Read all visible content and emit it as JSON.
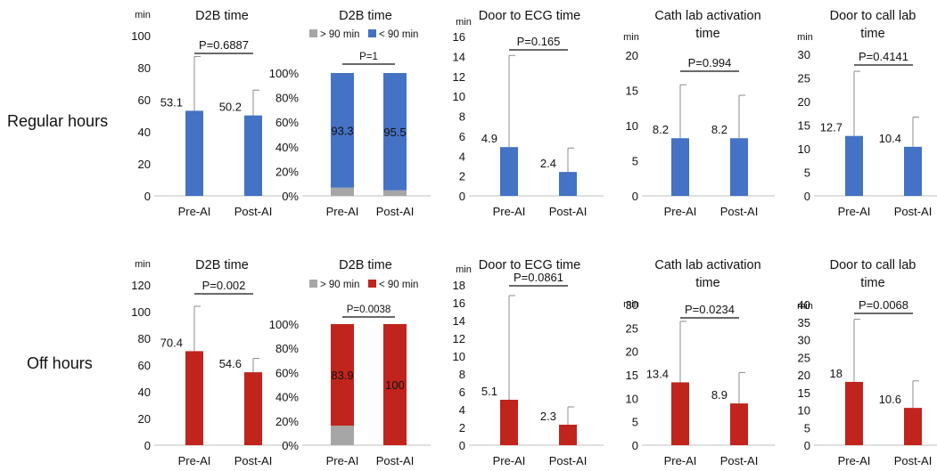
{
  "rows": [
    {
      "label": "Regular hours",
      "bar_color": "#4472C4"
    },
    {
      "label": "Off hours",
      "bar_color": "#C0241C"
    }
  ],
  "stack_low_color": "#A6A6A6",
  "chart_data": [
    {
      "row": 0,
      "type": "bar",
      "title": [
        "D2B time"
      ],
      "unit": "min",
      "categories": [
        "Pre-AI",
        "Post-AI"
      ],
      "values": [
        53.1,
        50.2
      ],
      "labels": [
        "53.1",
        "50.2"
      ],
      "error_top": [
        87,
        66
      ],
      "ylim": [
        0,
        100
      ],
      "yticks": [
        0,
        20,
        40,
        60,
        80,
        100
      ],
      "pvalue": "P=0.6887"
    },
    {
      "row": 0,
      "type": "bar",
      "stacked": true,
      "title": [
        "D2B time"
      ],
      "categories": [
        "Pre-AI",
        "Post-AI"
      ],
      "legend": [
        "> 90 min",
        "< 90 min"
      ],
      "series": [
        {
          "name": "> 90 min",
          "values": [
            6.7,
            4.5
          ]
        },
        {
          "name": "< 90 min",
          "values": [
            93.3,
            95.5
          ]
        }
      ],
      "labels": [
        "93.3",
        "95.5"
      ],
      "ylim": [
        0,
        100
      ],
      "yticks": [
        "0%",
        "20%",
        "40%",
        "60%",
        "80%",
        "100%"
      ],
      "pvalue": "P=1"
    },
    {
      "row": 0,
      "type": "bar",
      "title": [
        "Door to ECG time"
      ],
      "unit": "min",
      "categories": [
        "Pre-AI",
        "Post-AI"
      ],
      "values": [
        4.9,
        2.4
      ],
      "labels": [
        "4.9",
        "2.4"
      ],
      "error_top": [
        14.1,
        4.8
      ],
      "ylim": [
        0,
        16
      ],
      "yticks": [
        0,
        2,
        4,
        6,
        8,
        10,
        12,
        14,
        16
      ],
      "pvalue": "P=0.165"
    },
    {
      "row": 0,
      "type": "bar",
      "title": [
        "Cath lab activation",
        "time"
      ],
      "unit": "min",
      "categories": [
        "Pre-AI",
        "Post-AI"
      ],
      "values": [
        8.2,
        8.2
      ],
      "labels": [
        "8.2",
        "8.2"
      ],
      "error_top": [
        15.8,
        14.3
      ],
      "ylim": [
        0,
        20
      ],
      "yticks": [
        0,
        5,
        10,
        15,
        20
      ],
      "pvalue": "P=0.994"
    },
    {
      "row": 0,
      "type": "bar",
      "title": [
        "Door to call lab",
        "time"
      ],
      "unit": "min",
      "categories": [
        "Pre-AI",
        "Post-AI"
      ],
      "values": [
        12.7,
        10.4
      ],
      "labels": [
        "12.7",
        "10.4"
      ],
      "error_top": [
        26.4,
        16.7
      ],
      "ylim": [
        0,
        30
      ],
      "yticks": [
        0,
        5,
        10,
        15,
        20,
        25,
        30
      ],
      "pvalue": "P=0.4141"
    },
    {
      "row": 1,
      "type": "bar",
      "title": [
        "D2B time"
      ],
      "unit": "min",
      "categories": [
        "Pre-AI",
        "Post-AI"
      ],
      "values": [
        70.4,
        54.6
      ],
      "labels": [
        "70.4",
        "54.6"
      ],
      "error_top": [
        104,
        65
      ],
      "ylim": [
        0,
        120
      ],
      "yticks": [
        0,
        20,
        40,
        60,
        80,
        100,
        120
      ],
      "pvalue": "P=0.002"
    },
    {
      "row": 1,
      "type": "bar",
      "stacked": true,
      "title": [
        "D2B time"
      ],
      "categories": [
        "Pre-AI",
        "Post-AI"
      ],
      "legend": [
        "> 90 min",
        "< 90 min"
      ],
      "series": [
        {
          "name": "> 90 min",
          "values": [
            16.1,
            0
          ]
        },
        {
          "name": "< 90 min",
          "values": [
            83.9,
            100
          ]
        }
      ],
      "labels": [
        "83.9",
        "100"
      ],
      "ylim": [
        0,
        100
      ],
      "yticks": [
        "0%",
        "20%",
        "40%",
        "60%",
        "80%",
        "100%"
      ],
      "pvalue": "P=0.0038"
    },
    {
      "row": 1,
      "type": "bar",
      "title": [
        "Door to ECG time"
      ],
      "unit": "min",
      "categories": [
        "Pre-AI",
        "Post-AI"
      ],
      "values": [
        5.1,
        2.3
      ],
      "labels": [
        "5.1",
        "2.3"
      ],
      "error_top": [
        16.8,
        4.3
      ],
      "ylim": [
        0,
        18
      ],
      "yticks": [
        0,
        2,
        4,
        6,
        8,
        10,
        12,
        14,
        16,
        18
      ],
      "pvalue": "P=0.0861"
    },
    {
      "row": 1,
      "type": "bar",
      "title": [
        "Cath lab activation",
        "time"
      ],
      "unit": "min",
      "categories": [
        "Pre-AI",
        "Post-AI"
      ],
      "values": [
        13.4,
        8.9
      ],
      "labels": [
        "13.4",
        "8.9"
      ],
      "error_top": [
        26.4,
        15.5
      ],
      "ylim": [
        0,
        30
      ],
      "yticks": [
        0,
        5,
        10,
        15,
        20,
        25,
        30
      ],
      "pvalue": "P=0.0234"
    },
    {
      "row": 1,
      "type": "bar",
      "title": [
        "Door to call lab",
        "time"
      ],
      "unit": "min",
      "categories": [
        "Pre-AI",
        "Post-AI"
      ],
      "values": [
        18,
        10.6
      ],
      "labels": [
        "18",
        "10.6"
      ],
      "error_top": [
        35.8,
        18.3
      ],
      "ylim": [
        0,
        40
      ],
      "yticks": [
        0,
        5,
        10,
        15,
        20,
        25,
        30,
        35,
        40
      ],
      "pvalue": "P=0.0068"
    }
  ]
}
